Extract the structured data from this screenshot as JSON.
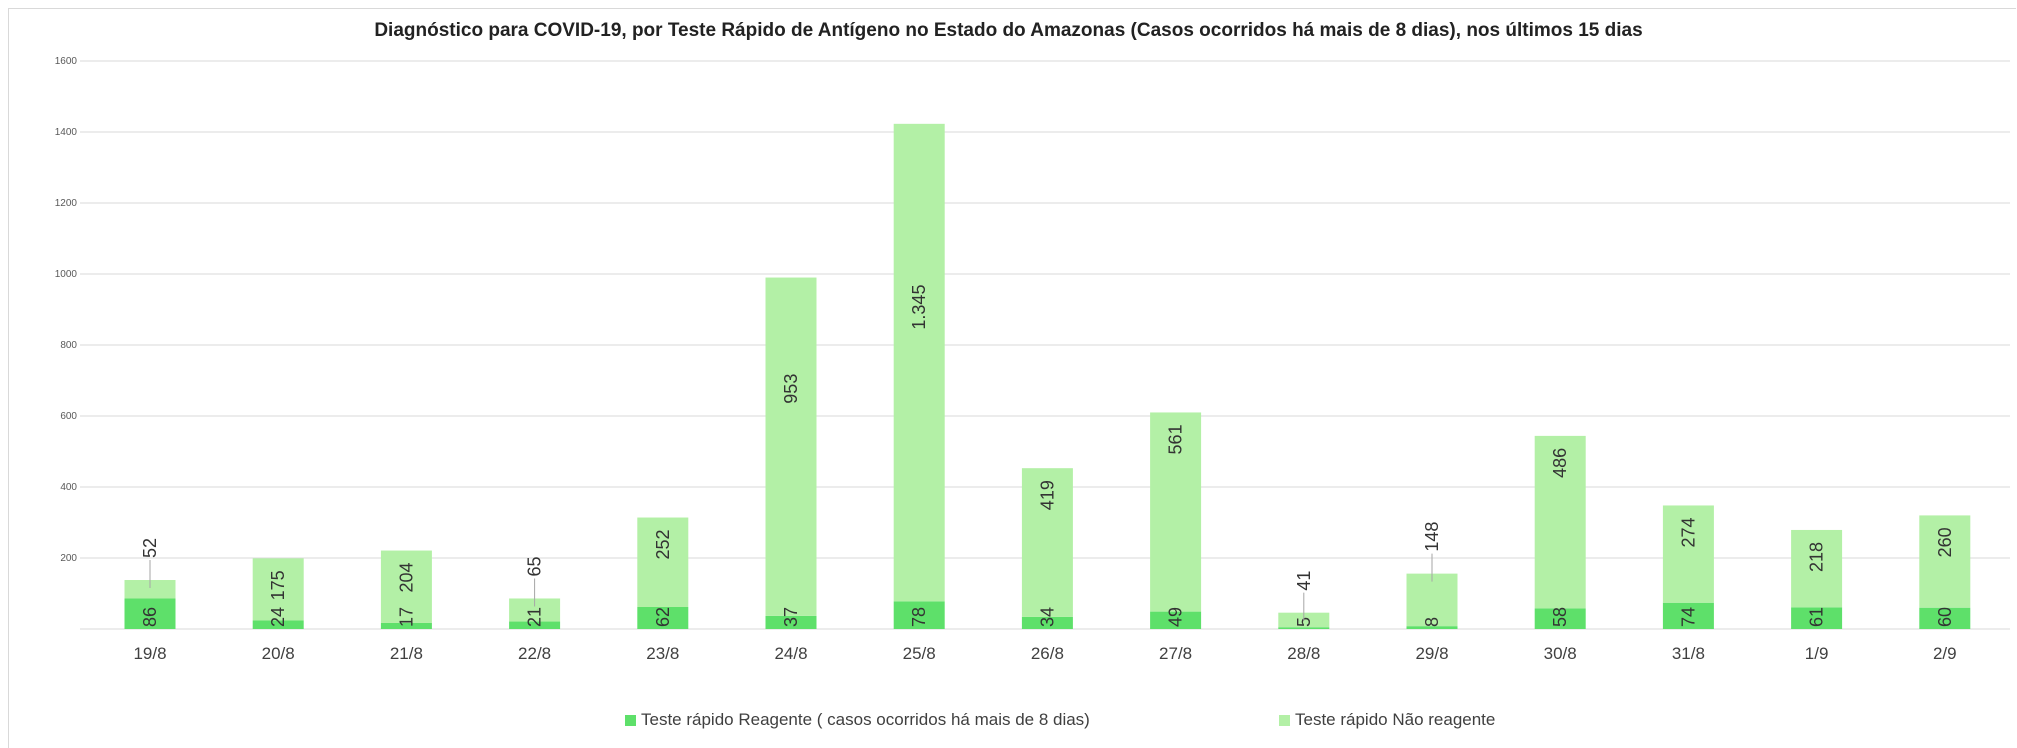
{
  "chart_data": {
    "type": "bar",
    "stacked": true,
    "title": "Diagnóstico para COVID-19, por  Teste Rápido de Antígeno no Estado do Amazonas (Casos ocorridos há mais de 8 dias), nos últimos 15 dias",
    "xlabel": "",
    "ylabel": "",
    "ylim": [
      0,
      1600
    ],
    "yticks": [
      "200",
      "400",
      "600",
      "800",
      "1000",
      "1200",
      "1400",
      "1600"
    ],
    "grid": true,
    "legend_position": "bottom",
    "categories": [
      "19/8",
      "20/8",
      "21/8",
      "22/8",
      "23/8",
      "24/8",
      "25/8",
      "26/8",
      "27/8",
      "28/8",
      "29/8",
      "30/8",
      "31/8",
      "1/9",
      "2/9"
    ],
    "series": [
      {
        "name": "Teste rápido Reagente ( casos ocorridos há mais de 8 dias)",
        "color": "#5ee06a",
        "values": [
          86,
          24,
          17,
          21,
          62,
          37,
          78,
          34,
          49,
          5,
          8,
          58,
          74,
          61,
          60
        ],
        "labels": [
          "86",
          "24",
          "17",
          "21",
          "62",
          "37",
          "78",
          "34",
          "49",
          "5",
          "8",
          "58",
          "74",
          "61",
          "60"
        ]
      },
      {
        "name": "Teste rápido Não reagente",
        "color": "#b3f0a6",
        "values": [
          52,
          175,
          204,
          65,
          252,
          953,
          1345,
          419,
          561,
          41,
          148,
          486,
          274,
          218,
          260
        ],
        "labels": [
          "52",
          "175",
          "204",
          "65",
          "252",
          "953",
          "1.345",
          "419",
          "561",
          "41",
          "148",
          "486",
          "274",
          "218",
          "260"
        ]
      }
    ]
  }
}
